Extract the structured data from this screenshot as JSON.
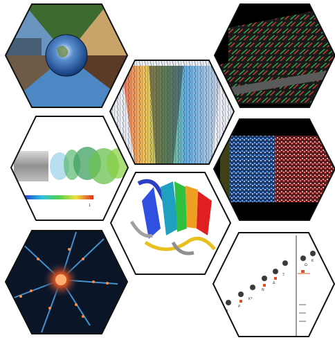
{
  "tiles": [
    {
      "name": "earth-biomes",
      "caption": ""
    },
    {
      "name": "crop-rows-simulation",
      "caption": ""
    },
    {
      "name": "particle-flow-visualization",
      "caption": ""
    },
    {
      "name": "turbulent-jet-simulation",
      "caption": ""
    },
    {
      "name": "molecular-dynamics-box",
      "caption": ""
    },
    {
      "name": "protein-ribbon-structure",
      "caption": ""
    },
    {
      "name": "neuron-network",
      "caption": ""
    },
    {
      "name": "particle-physics-plot",
      "caption": ""
    }
  ],
  "colors": {
    "hex_stroke": "#111111",
    "background": "#ffffff"
  },
  "physics_plot": {
    "labels": [
      "ρ",
      "K*",
      "N",
      "Δ",
      "Ξ",
      "Ω",
      "π",
      "K"
    ]
  }
}
